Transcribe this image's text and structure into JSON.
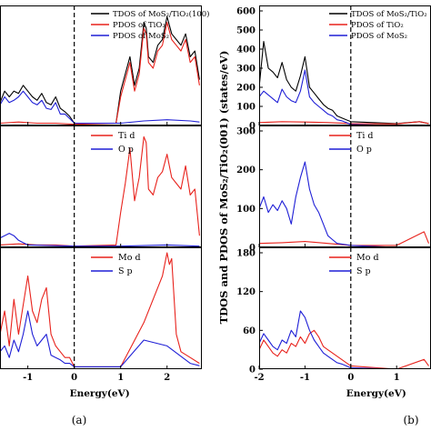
{
  "chart_data": [
    {
      "figure": "(a)",
      "type": "line",
      "xlabel": "Energy(eV)",
      "x_ticks": [
        -1,
        0,
        1,
        2
      ],
      "xlim": [
        -1.6,
        2.75
      ],
      "fermi_level": 0,
      "panels": [
        {
          "name": "total",
          "series": [
            {
              "name": "TDOS of MoS₂/TiO₂(100)",
              "color": "#000000",
              "x": [
                -1.6,
                -1.5,
                -1.4,
                -1.3,
                -1.2,
                -1.1,
                -1.0,
                -0.9,
                -0.8,
                -0.7,
                -0.6,
                -0.5,
                -0.4,
                -0.3,
                -0.2,
                -0.1,
                0.0,
                0.9,
                1.0,
                1.1,
                1.2,
                1.3,
                1.4,
                1.5,
                1.55,
                1.6,
                1.7,
                1.8,
                1.9,
                2.0,
                2.1,
                2.2,
                2.3,
                2.4,
                2.5,
                2.6,
                2.7
              ],
              "y": [
                0.2,
                0.3,
                0.25,
                0.3,
                0.28,
                0.35,
                0.3,
                0.25,
                0.22,
                0.28,
                0.2,
                0.18,
                0.25,
                0.15,
                0.12,
                0.08,
                0.02,
                0.02,
                0.3,
                0.45,
                0.6,
                0.35,
                0.5,
                0.9,
                0.85,
                0.6,
                0.55,
                0.7,
                0.75,
                0.95,
                0.8,
                0.75,
                0.7,
                0.8,
                0.6,
                0.65,
                0.4
              ]
            },
            {
              "name": "PDOS of TiO₂",
              "color": "#e8221c",
              "x": [
                -1.6,
                -1.2,
                -0.8,
                -0.4,
                0.0,
                0.9,
                1.0,
                1.1,
                1.2,
                1.3,
                1.4,
                1.5,
                1.55,
                1.6,
                1.7,
                1.8,
                1.9,
                2.0,
                2.1,
                2.2,
                2.3,
                2.4,
                2.5,
                2.6,
                2.7
              ],
              "y": [
                0.02,
                0.03,
                0.02,
                0.02,
                0.01,
                0.02,
                0.25,
                0.4,
                0.55,
                0.3,
                0.45,
                0.85,
                0.8,
                0.55,
                0.5,
                0.65,
                0.7,
                0.9,
                0.75,
                0.7,
                0.65,
                0.75,
                0.55,
                0.6,
                0.35
              ]
            },
            {
              "name": "PDOS of MoS₂",
              "color": "#1f1fd6",
              "x": [
                -1.6,
                -1.5,
                -1.4,
                -1.3,
                -1.2,
                -1.1,
                -1.0,
                -0.9,
                -0.8,
                -0.7,
                -0.6,
                -0.5,
                -0.4,
                -0.3,
                -0.2,
                -0.1,
                0.0,
                1.0,
                1.5,
                2.0,
                2.5,
                2.7
              ],
              "y": [
                0.18,
                0.25,
                0.2,
                0.22,
                0.25,
                0.3,
                0.25,
                0.2,
                0.18,
                0.22,
                0.15,
                0.14,
                0.2,
                0.1,
                0.1,
                0.06,
                0.02,
                0.02,
                0.04,
                0.05,
                0.04,
                0.03
              ]
            }
          ]
        },
        {
          "name": "Ti/O",
          "series": [
            {
              "name": "Ti d",
              "color": "#e8221c",
              "x": [
                -1.6,
                -1.2,
                -0.8,
                -0.4,
                0.0,
                0.9,
                1.0,
                1.1,
                1.2,
                1.3,
                1.4,
                1.5,
                1.55,
                1.6,
                1.7,
                1.8,
                1.9,
                2.0,
                2.1,
                2.2,
                2.3,
                2.4,
                2.5,
                2.6,
                2.7
              ],
              "y": [
                0.02,
                0.03,
                0.02,
                0.02,
                0.01,
                0.02,
                0.3,
                0.55,
                0.85,
                0.4,
                0.6,
                0.95,
                0.9,
                0.5,
                0.45,
                0.6,
                0.65,
                0.8,
                0.6,
                0.55,
                0.5,
                0.7,
                0.45,
                0.5,
                0.1
              ]
            },
            {
              "name": "O p",
              "color": "#1f1fd6",
              "x": [
                -1.6,
                -1.4,
                -1.3,
                -1.2,
                -1.1,
                -1.0,
                0.0,
                1.0,
                2.0,
                2.7
              ],
              "y": [
                0.08,
                0.12,
                0.1,
                0.06,
                0.04,
                0.02,
                0.01,
                0.01,
                0.02,
                0.01
              ]
            }
          ]
        },
        {
          "name": "Mo/S",
          "series": [
            {
              "name": "Mo d",
              "color": "#e8221c",
              "x": [
                -1.6,
                -1.5,
                -1.4,
                -1.3,
                -1.2,
                -1.1,
                -1.0,
                -0.9,
                -0.8,
                -0.7,
                -0.6,
                -0.5,
                -0.4,
                -0.3,
                -0.2,
                -0.1,
                0.0,
                1.0,
                1.5,
                1.9,
                2.0,
                2.05,
                2.1,
                2.2,
                2.3,
                2.5,
                2.7
              ],
              "y": [
                0.3,
                0.5,
                0.2,
                0.6,
                0.3,
                0.55,
                0.8,
                0.5,
                0.4,
                0.6,
                0.7,
                0.3,
                0.2,
                0.15,
                0.1,
                0.1,
                0.02,
                0.02,
                0.4,
                0.8,
                1.0,
                0.9,
                0.95,
                0.3,
                0.15,
                0.1,
                0.05
              ]
            },
            {
              "name": "S p",
              "color": "#1f1fd6",
              "x": [
                -1.6,
                -1.5,
                -1.4,
                -1.3,
                -1.2,
                -1.1,
                -1.0,
                -0.9,
                -0.8,
                -0.7,
                -0.6,
                -0.5,
                -0.4,
                -0.3,
                -0.2,
                -0.1,
                0.0,
                1.0,
                1.5,
                2.0,
                2.5,
                2.7
              ],
              "y": [
                0.15,
                0.2,
                0.1,
                0.25,
                0.15,
                0.3,
                0.5,
                0.3,
                0.2,
                0.25,
                0.3,
                0.12,
                0.1,
                0.08,
                0.05,
                0.05,
                0.02,
                0.02,
                0.25,
                0.2,
                0.05,
                0.03
              ]
            }
          ]
        }
      ]
    },
    {
      "figure": "(b)",
      "type": "line",
      "xlabel": "Energy(eV)",
      "ylabel": "TDOS and PDOS of MoS₂/TiO₂(001) (states/eV)",
      "x_ticks": [
        -2,
        -1,
        0,
        1
      ],
      "xlim": [
        -2,
        1.75
      ],
      "fermi_level": 0,
      "panels": [
        {
          "name": "total",
          "ylim": [
            0,
            600
          ],
          "y_ticks": [
            0,
            100,
            200,
            300,
            400,
            500,
            600
          ],
          "series": [
            {
              "name": "TDOS of MoS₂/TiO₂",
              "color": "#000000",
              "x": [
                -2.0,
                -1.9,
                -1.8,
                -1.7,
                -1.6,
                -1.5,
                -1.4,
                -1.3,
                -1.2,
                -1.1,
                -1.0,
                -0.9,
                -0.8,
                -0.7,
                -0.6,
                -0.5,
                -0.4,
                -0.3,
                -0.2,
                -0.1,
                0.0,
                1.0,
                1.5,
                1.7
              ],
              "y": [
                200,
                440,
                300,
                280,
                250,
                330,
                240,
                200,
                180,
                260,
                360,
                200,
                170,
                140,
                110,
                90,
                80,
                50,
                40,
                30,
                20,
                10,
                20,
                10
              ]
            },
            {
              "name": "PDOS of TiO₂",
              "color": "#e8221c",
              "x": [
                -2.0,
                -1.5,
                -1.0,
                -0.5,
                0.0,
                1.0,
                1.5,
                1.7
              ],
              "y": [
                15,
                20,
                18,
                15,
                10,
                8,
                20,
                10
              ]
            },
            {
              "name": "PDOS of MoS₂",
              "color": "#1f1fd6",
              "x": [
                -2.0,
                -1.9,
                -1.8,
                -1.7,
                -1.6,
                -1.5,
                -1.4,
                -1.3,
                -1.2,
                -1.1,
                -1.0,
                -0.9,
                -0.8,
                -0.7,
                -0.6,
                -0.5,
                -0.4,
                -0.3,
                -0.2,
                -0.1,
                0.0,
                1.0,
                1.7
              ],
              "y": [
                150,
                180,
                160,
                140,
                120,
                190,
                150,
                130,
                120,
                180,
                290,
                150,
                120,
                100,
                80,
                60,
                50,
                30,
                25,
                15,
                5,
                0,
                0
              ]
            }
          ]
        },
        {
          "name": "Ti/O",
          "ylim": [
            0,
            300
          ],
          "y_ticks": [
            0,
            100,
            200,
            300
          ],
          "series": [
            {
              "name": "Ti d",
              "color": "#e8221c",
              "x": [
                -2.0,
                -1.5,
                -1.0,
                -0.5,
                0.0,
                1.0,
                1.6,
                1.7
              ],
              "y": [
                10,
                12,
                15,
                10,
                5,
                5,
                40,
                10
              ]
            },
            {
              "name": "O p",
              "color": "#1f1fd6",
              "x": [
                -2.0,
                -1.9,
                -1.8,
                -1.7,
                -1.6,
                -1.5,
                -1.4,
                -1.3,
                -1.2,
                -1.1,
                -1.0,
                -0.9,
                -0.8,
                -0.7,
                -0.6,
                -0.5,
                -0.4,
                -0.3,
                0.0,
                1.0,
                1.7
              ],
              "y": [
                100,
                130,
                90,
                110,
                95,
                120,
                100,
                60,
                130,
                180,
                220,
                150,
                110,
                90,
                60,
                30,
                20,
                10,
                5,
                0,
                0
              ]
            }
          ]
        },
        {
          "name": "Mo/S",
          "ylim": [
            0,
            180
          ],
          "y_ticks": [
            0,
            60,
            120,
            180
          ],
          "series": [
            {
              "name": "Mo d",
              "color": "#e8221c",
              "x": [
                -2.0,
                -1.9,
                -1.8,
                -1.7,
                -1.6,
                -1.5,
                -1.4,
                -1.3,
                -1.2,
                -1.1,
                -1.0,
                -0.9,
                -0.8,
                -0.7,
                -0.6,
                -0.5,
                -0.4,
                -0.3,
                -0.2,
                -0.1,
                0.0,
                1.0,
                1.6,
                1.7
              ],
              "y": [
                30,
                45,
                35,
                25,
                20,
                30,
                25,
                40,
                35,
                50,
                40,
                55,
                60,
                50,
                35,
                30,
                25,
                20,
                15,
                10,
                5,
                0,
                15,
                5
              ]
            },
            {
              "name": "S p",
              "color": "#1f1fd6",
              "x": [
                -2.0,
                -1.9,
                -1.8,
                -1.7,
                -1.6,
                -1.5,
                -1.4,
                -1.3,
                -1.2,
                -1.1,
                -1.0,
                -0.9,
                -0.8,
                -0.7,
                -0.6,
                -0.5,
                -0.4,
                -0.3,
                -0.2,
                -0.1,
                0.0,
                1.0,
                1.7
              ],
              "y": [
                40,
                55,
                45,
                35,
                30,
                45,
                40,
                60,
                50,
                90,
                80,
                60,
                45,
                35,
                25,
                20,
                15,
                10,
                8,
                5,
                2,
                0,
                0
              ]
            }
          ]
        }
      ]
    }
  ],
  "captions": [
    "(a)",
    "(b)"
  ]
}
